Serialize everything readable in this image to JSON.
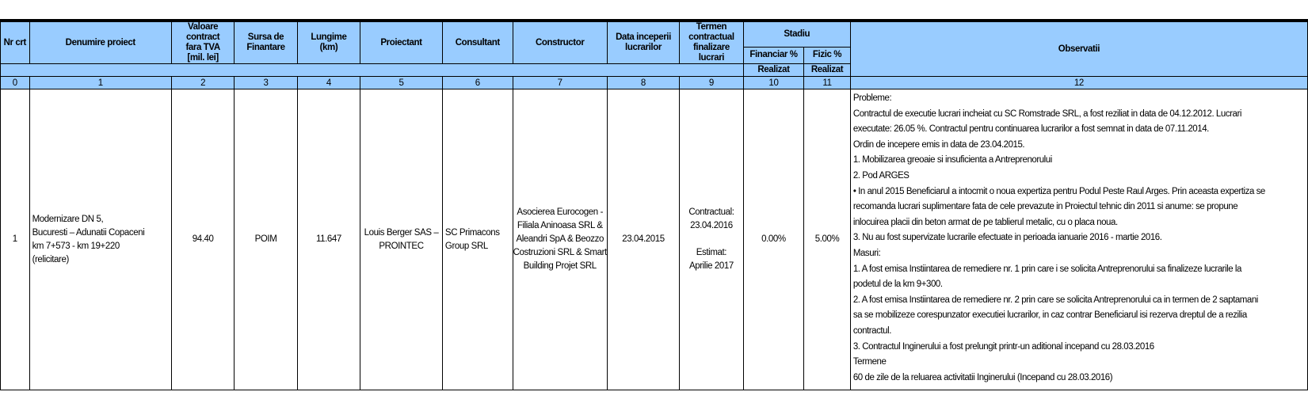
{
  "headers": {
    "nr": "Nr crt",
    "denumire": "Denumire proiect",
    "valoare": [
      "Valoare contract",
      "fara TVA",
      "[mil. lei]"
    ],
    "sursa": [
      "Sursa de",
      "Finantare"
    ],
    "lungime": [
      "Lungime",
      "(km)"
    ],
    "proiectant": "Proiectant",
    "consultant": "Consultant",
    "constructor": "Constructor",
    "data": [
      "Data inceperii",
      "lucrarilor"
    ],
    "termen": [
      "Termen",
      "contractual",
      "finalizare lucrari"
    ],
    "stadiu": "Stadiu",
    "financiar": "Financiar %",
    "fizic": "Fizic %",
    "realizat1": "Realizat",
    "realizat2": "Realizat",
    "observatii": "Observatii"
  },
  "column_numbers": [
    "0",
    "1",
    "2",
    "3",
    "4",
    "5",
    "6",
    "7",
    "8",
    "9",
    "10",
    "11",
    "12"
  ],
  "row": {
    "nr": "1",
    "denumire": [
      "Modernizare DN 5,",
      "Bucuresti – Adunatii Copaceni",
      "km 7+573 - km 19+220",
      "(relicitare)"
    ],
    "valoare": "94.40",
    "sursa": "POIM",
    "lungime": "11.647",
    "proiectant": [
      "Louis Berger SAS –",
      "PROINTEC"
    ],
    "consultant": [
      "SC Primacons",
      "Group SRL"
    ],
    "constructor": [
      "Asocierea Eurocogen -",
      "Filiala Aninoasa SRL &",
      "Aleandri SpA & Beozzo",
      "Costruzioni SRL & Smart",
      "Building Projet SRL"
    ],
    "data": "23.04.2015",
    "termen": [
      "Contractual:",
      "23.04.2016",
      "",
      "Estimat:",
      "Aprilie 2017"
    ],
    "financiar": "0.00%",
    "fizic": "5.00%",
    "observatii": [
      "Probleme:",
      "Contractul de executie lucrari incheiat cu SC Romstrade SRL, a fost reziliat in data de 04.12.2012. Lucrari",
      "executate: 26.05 %. Contractul pentru continuarea lucrarilor a fost semnat in data de 07.11.2014.",
      "Ordin de incepere emis in data de 23.04.2015.",
      "1.  Mobilizarea greoaie si insuficienta a Antreprenorului",
      "2.  Pod ARGES",
      "• In anul 2015 Beneficiarul a intocmit o noua expertiza pentru Podul Peste Raul Arges. Prin aceasta expertiza se",
      "recomanda  lucrari suplimentare fata de cele prevazute in Proiectul tehnic din 2011 si anume: se propune",
      "inlocuirea placii din beton armat de pe tablierul metalic, cu o placa noua.",
      "3. Nu au fost supervizate lucrarile efectuate in perioada ianuarie 2016 - martie 2016.",
      "Masuri:",
      "1. A fost emisa Instiintarea de remediere nr. 1 prin care i se solicita Antreprenorului sa finalizeze lucrarile la",
      "podetul de la km 9+300.",
      "2. A fost emisa Instiintarea de remediere nr. 2 prin care se solicita Antreprenorului ca in termen de 2 saptamani",
      "sa se mobilizeze corespunzator executiei lucrarilor, in caz contrar Beneficiarul isi rezerva dreptul de a rezilia",
      "contractul.",
      "3. Contractul Inginerului a fost prelungit printr-un aditional incepand cu 28.03.2016",
      "Termene",
      "60 de zile de la reluarea activitatii Inginerului (Incepand cu 28.03.2016)"
    ]
  }
}
